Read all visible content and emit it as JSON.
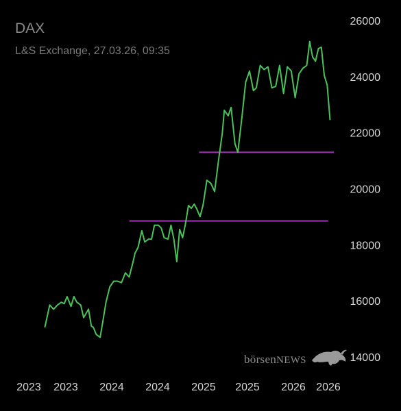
{
  "header": {
    "title": "DAX",
    "subtitle": "L&S Exchange, 27.03.26, 09:35"
  },
  "watermark": {
    "prefix": "börsen",
    "suffix": "NEWS"
  },
  "colors": {
    "background": "#000000",
    "line": "#4cc25a",
    "level_line": "#9b30b5",
    "text": "#d6d6d6"
  },
  "chart_data": {
    "type": "line",
    "title": "DAX",
    "subtitle": "L&S Exchange, 27.03.26, 09:35",
    "xlabel": "",
    "ylabel": "",
    "x_tick_labels": [
      "2023",
      "2023",
      "2024",
      "2024",
      "2025",
      "2025",
      "2026",
      "2026"
    ],
    "y_tick_labels": [
      "14000",
      "16000",
      "18000",
      "20000",
      "22000",
      "24000",
      "26000"
    ],
    "y_ticks": [
      14000,
      16000,
      18000,
      20000,
      22000,
      24000,
      26000
    ],
    "ylim": [
      14000,
      26000
    ],
    "xlim": [
      2023.0,
      2026.25
    ],
    "y_axis_position": "right",
    "grid": false,
    "legend": "none",
    "series": [
      {
        "x": [
          2023.25,
          2023.3,
          2023.34,
          2023.38,
          2023.42,
          2023.45,
          2023.48,
          2023.52,
          2023.55,
          2023.58,
          2023.62,
          2023.65,
          2023.7,
          2023.73,
          2023.75,
          2023.78,
          2023.82,
          2023.85,
          2023.88,
          2023.92,
          2023.96,
          2024.0,
          2024.04,
          2024.08,
          2024.12,
          2024.16,
          2024.18,
          2024.21,
          2024.25,
          2024.28,
          2024.32,
          2024.35,
          2024.38,
          2024.42,
          2024.45,
          2024.48,
          2024.52,
          2024.55,
          2024.58,
          2024.61,
          2024.64,
          2024.67,
          2024.7,
          2024.73,
          2024.76,
          2024.79,
          2024.82,
          2024.85,
          2024.88,
          2024.92,
          2024.96,
          2025.0,
          2025.04,
          2025.08,
          2025.1,
          2025.14,
          2025.17,
          2025.21,
          2025.24,
          2025.28,
          2025.32,
          2025.36,
          2025.4,
          2025.43,
          2025.47,
          2025.51,
          2025.55,
          2025.59,
          2025.63,
          2025.67,
          2025.71,
          2025.75,
          2025.79,
          2025.83,
          2025.87,
          2025.91,
          2025.95,
          2025.98,
          2026.01,
          2026.04,
          2026.07,
          2026.1,
          2026.13,
          2026.16,
          2026.19
        ],
        "y": [
          15050,
          15850,
          15700,
          15850,
          15950,
          15900,
          16150,
          15800,
          16150,
          15950,
          15850,
          15400,
          15700,
          15100,
          15050,
          14800,
          14700,
          15300,
          15950,
          16500,
          16700,
          16700,
          16650,
          17000,
          16850,
          17400,
          17700,
          17900,
          18500,
          18100,
          18200,
          18200,
          18700,
          18700,
          18600,
          18250,
          18200,
          18700,
          18200,
          17400,
          18550,
          18250,
          18750,
          19400,
          19300,
          19450,
          19250,
          19000,
          19400,
          20300,
          20200,
          19900,
          21000,
          22000,
          22800,
          22600,
          22900,
          21600,
          21300,
          22500,
          23800,
          24200,
          23500,
          23600,
          24400,
          24250,
          24350,
          23600,
          23650,
          24400,
          23400,
          24350,
          24200,
          23250,
          24100,
          24300,
          24400,
          25250,
          24700,
          24550,
          25000,
          25050,
          24050,
          23700,
          22450
        ]
      }
    ],
    "horizontal_levels": [
      {
        "value": 21300,
        "x_start": 2024.84,
        "x_end": 2026.23
      },
      {
        "value": 18850,
        "x_start": 2024.12,
        "x_end": 2026.17
      }
    ]
  }
}
